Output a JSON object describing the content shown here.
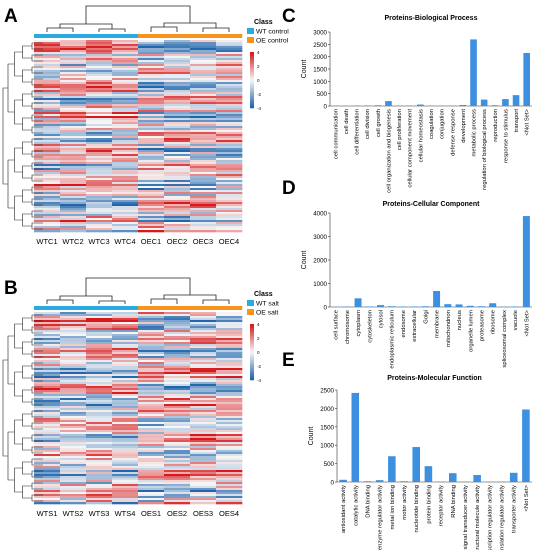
{
  "panels": {
    "A": {
      "letter": "A",
      "legend_title": "Class",
      "legend": [
        {
          "label": "WT control",
          "color": "#29abe2"
        },
        {
          "label": "OE control",
          "color": "#f7931e"
        }
      ],
      "columns": [
        "WTC1",
        "WTC2",
        "WTC3",
        "WTC4",
        "OEC1",
        "OEC2",
        "OEC3",
        "OEC4"
      ],
      "column_classes": [
        "WT control",
        "WT control",
        "WT control",
        "WT control",
        "OE control",
        "OE control",
        "OE control",
        "OE control"
      ],
      "colorbar_ticks": [
        "4",
        "2",
        "0",
        "-2",
        "-4"
      ]
    },
    "B": {
      "letter": "B",
      "legend_title": "Class",
      "legend": [
        {
          "label": "WT salt",
          "color": "#29abe2"
        },
        {
          "label": "OE salt",
          "color": "#f7931e"
        }
      ],
      "columns": [
        "WTS1",
        "WTS2",
        "WTS3",
        "WTS4",
        "OES1",
        "OES2",
        "OES3",
        "OES4"
      ],
      "column_classes": [
        "WT salt",
        "WT salt",
        "WT salt",
        "WT salt",
        "OE salt",
        "OE salt",
        "OE salt",
        "OE salt"
      ],
      "colorbar_ticks": [
        "4",
        "2",
        "0",
        "-2",
        "-4"
      ]
    }
  },
  "colors": {
    "heat_high": "#d7191c",
    "heat_mid": "#f7f7f7",
    "heat_low": "#2166ac",
    "bar": "#3d8fe0"
  },
  "chart_data": [
    {
      "id": "C",
      "letter": "C",
      "type": "bar",
      "title": "Proteins-Biological Process",
      "ylabel": "Count",
      "ylim": [
        0,
        3000
      ],
      "yticks": [
        0,
        500,
        1000,
        1500,
        2000,
        2500,
        3000
      ],
      "categories": [
        "cell communication",
        "cell death",
        "cell differentiation",
        "cell division",
        "cell growth",
        "cell organization and biogenesis",
        "cell proliferation",
        "cellular component movement",
        "cellular homeostasis",
        "coagulation",
        "conjugation",
        "defense response",
        "development",
        "metabolic process",
        "regulation of biological process",
        "reproduction",
        "response to stimulus",
        "transport",
        "<Not Set>"
      ],
      "values": [
        10,
        5,
        15,
        20,
        30,
        200,
        10,
        20,
        60,
        10,
        5,
        10,
        40,
        2700,
        260,
        30,
        280,
        440,
        2150
      ]
    },
    {
      "id": "D",
      "letter": "D",
      "type": "bar",
      "title": "Proteins-Cellular Component",
      "ylabel": "Count",
      "ylim": [
        0,
        4000
      ],
      "yticks": [
        0,
        1000,
        2000,
        3000,
        4000
      ],
      "categories": [
        "cell surface",
        "chromosome",
        "cytoplasm",
        "cytoskeleton",
        "cytosol",
        "endoplasmic reticulum",
        "endosome",
        "extracellular",
        "Golgi",
        "membrane",
        "mitochondrion",
        "nucleus",
        "organelle lumen",
        "proteasome",
        "ribosome",
        "spliceosomal complex",
        "vacuole",
        "<Not Set>"
      ],
      "values": [
        10,
        20,
        370,
        20,
        80,
        30,
        20,
        20,
        30,
        680,
        120,
        110,
        50,
        30,
        160,
        10,
        20,
        3870
      ]
    },
    {
      "id": "E",
      "letter": "E",
      "type": "bar",
      "title": "Proteins-Molecular Function",
      "ylabel": "Count",
      "ylim": [
        0,
        2500
      ],
      "yticks": [
        0,
        500,
        1000,
        1500,
        2000,
        2500
      ],
      "categories": [
        "antioxidant activity",
        "catalytic activity",
        "DNA binding",
        "enzyme regulator activity",
        "metal ion binding",
        "motor activity",
        "nucleotide binding",
        "protein binding",
        "receptor activity",
        "RNA binding",
        "signal transducer activity",
        "structural molecule activity",
        "transcription regulator activity",
        "translation regulator activity",
        "transporter activity",
        "<Not Set>"
      ],
      "values": [
        60,
        2420,
        20,
        50,
        700,
        20,
        950,
        430,
        10,
        240,
        10,
        190,
        10,
        10,
        250,
        1970
      ]
    }
  ]
}
